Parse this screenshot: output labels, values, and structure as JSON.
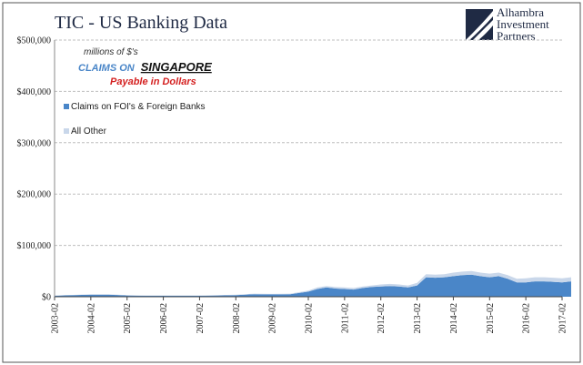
{
  "header": {
    "title": "TIC - US Banking Data"
  },
  "logo": {
    "line1": "Alhambra",
    "line2": "Investment",
    "line3": "Partners"
  },
  "annotations": {
    "units": "millions of $'s",
    "claims_on": "CLAIMS ON",
    "country": "SINGAPORE",
    "payable": "Payable in Dollars"
  },
  "colors": {
    "foi_series": "#4a86c8",
    "other_series": "#c9d7ea",
    "title": "#1f2a44",
    "gridline": "#bfbfbf",
    "payable": "#d42020"
  },
  "chart_data": {
    "type": "area",
    "stacked": true,
    "title": "TIC - US Banking Data",
    "xlabel": "",
    "ylabel": "",
    "ylim": [
      0,
      500000
    ],
    "yticks": [
      "$0",
      "$100,000",
      "$200,000",
      "$300,000",
      "$400,000",
      "$500,000"
    ],
    "ytick_values": [
      0,
      100000,
      200000,
      300000,
      400000,
      500000
    ],
    "xticks": [
      "2003-02",
      "2004-02",
      "2005-02",
      "2006-02",
      "2007-02",
      "2008-02",
      "2009-02",
      "2010-02",
      "2011-02",
      "2012-02",
      "2013-02",
      "2014-02",
      "2015-02",
      "2016-02",
      "2017-02"
    ],
    "grid": "horizontal dashed",
    "legend_position": "top-left",
    "x": [
      "2003-02",
      "2003-08",
      "2004-02",
      "2004-08",
      "2005-02",
      "2005-08",
      "2006-02",
      "2006-08",
      "2007-02",
      "2007-08",
      "2008-02",
      "2008-08",
      "2009-02",
      "2009-08",
      "2010-02",
      "2010-05",
      "2010-08",
      "2010-11",
      "2011-02",
      "2011-05",
      "2011-08",
      "2011-11",
      "2012-02",
      "2012-05",
      "2012-08",
      "2012-11",
      "2013-02",
      "2013-05",
      "2013-08",
      "2013-11",
      "2014-02",
      "2014-05",
      "2014-08",
      "2014-11",
      "2015-02",
      "2015-05",
      "2015-08",
      "2015-11",
      "2016-02",
      "2016-05",
      "2016-08",
      "2016-11",
      "2017-02",
      "2017-05"
    ],
    "series": [
      {
        "name": "Claims on FOI's & Foreign Banks",
        "color": "#4a86c8",
        "values": [
          2000,
          3000,
          4000,
          4000,
          2500,
          2000,
          2000,
          2000,
          2000,
          2500,
          3000,
          5000,
          4500,
          5000,
          10000,
          15000,
          18000,
          16000,
          15000,
          14000,
          17000,
          19000,
          20000,
          21000,
          20000,
          18000,
          22000,
          38000,
          37000,
          38000,
          40000,
          42000,
          43000,
          40000,
          38000,
          40000,
          35000,
          28000,
          28000,
          30000,
          30000,
          29000,
          28000,
          30000
        ]
      },
      {
        "name": "All Other",
        "color": "#c9d7ea",
        "values": [
          500,
          500,
          1000,
          800,
          500,
          500,
          500,
          500,
          500,
          500,
          1000,
          1000,
          1000,
          1000,
          2000,
          3000,
          3000,
          3000,
          3000,
          3000,
          3000,
          3000,
          4000,
          4000,
          4000,
          4000,
          5000,
          6000,
          6000,
          6000,
          7000,
          7000,
          7000,
          7000,
          7000,
          7000,
          7000,
          7000,
          8000,
          8000,
          8000,
          8000,
          8000,
          8000
        ]
      }
    ]
  }
}
